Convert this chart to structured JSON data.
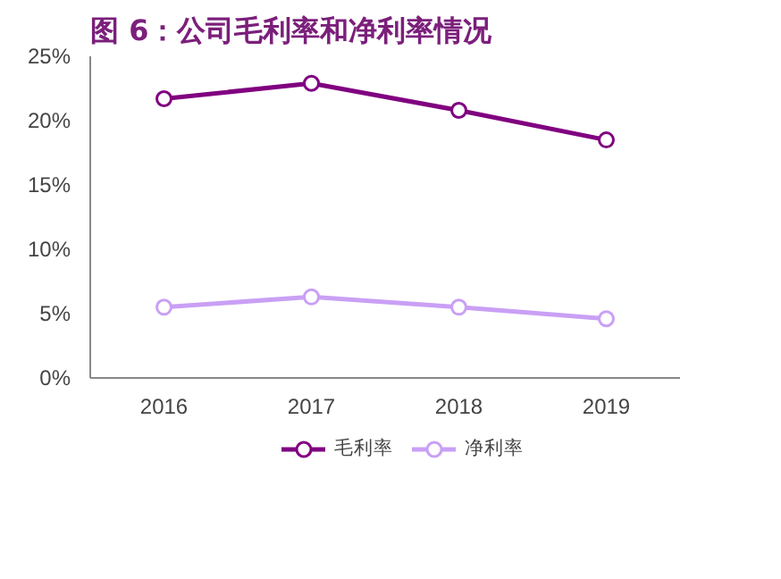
{
  "chart_data": {
    "type": "line",
    "title": "图 6：公司毛利率和净利率情况",
    "categories": [
      "2016",
      "2017",
      "2018",
      "2019"
    ],
    "series": [
      {
        "name": "毛利率",
        "color": "#800080",
        "values": [
          21.7,
          22.9,
          20.8,
          18.5
        ]
      },
      {
        "name": "净利率",
        "color": "#c9a0f5",
        "values": [
          5.5,
          6.3,
          5.5,
          4.6
        ]
      }
    ],
    "ylim": [
      0,
      25
    ],
    "yticks": [
      {
        "value": 0,
        "label": "0%"
      },
      {
        "value": 5,
        "label": "5%"
      },
      {
        "value": 10,
        "label": "10%"
      },
      {
        "value": 15,
        "label": "15%"
      },
      {
        "value": 20,
        "label": "20%"
      },
      {
        "value": 25,
        "label": "25%"
      }
    ],
    "grid": false,
    "legend": "bottom",
    "marker": "circle",
    "line_style": "solid"
  }
}
